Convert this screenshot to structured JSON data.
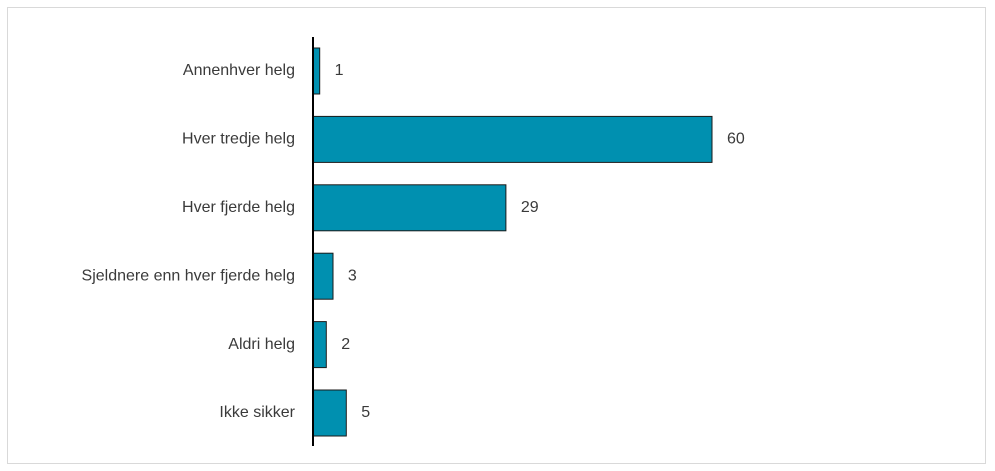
{
  "chart_data": {
    "type": "bar",
    "orientation": "horizontal",
    "categories": [
      "Annenhver helg",
      "Hver tredje helg",
      "Hver fjerde helg",
      "Sjeldnere enn hver fjerde helg",
      "Aldri helg",
      "Ikke sikker"
    ],
    "values": [
      1,
      60,
      29,
      3,
      2,
      5
    ],
    "data_labels": [
      "1",
      "60",
      "29",
      "3",
      "2",
      "5"
    ],
    "xlim": [
      0,
      100
    ],
    "grid": false,
    "legend": "none",
    "bar_color": "#0090b0",
    "bar_edge_color": "#1a1a1a",
    "axis_color": "#000000"
  }
}
